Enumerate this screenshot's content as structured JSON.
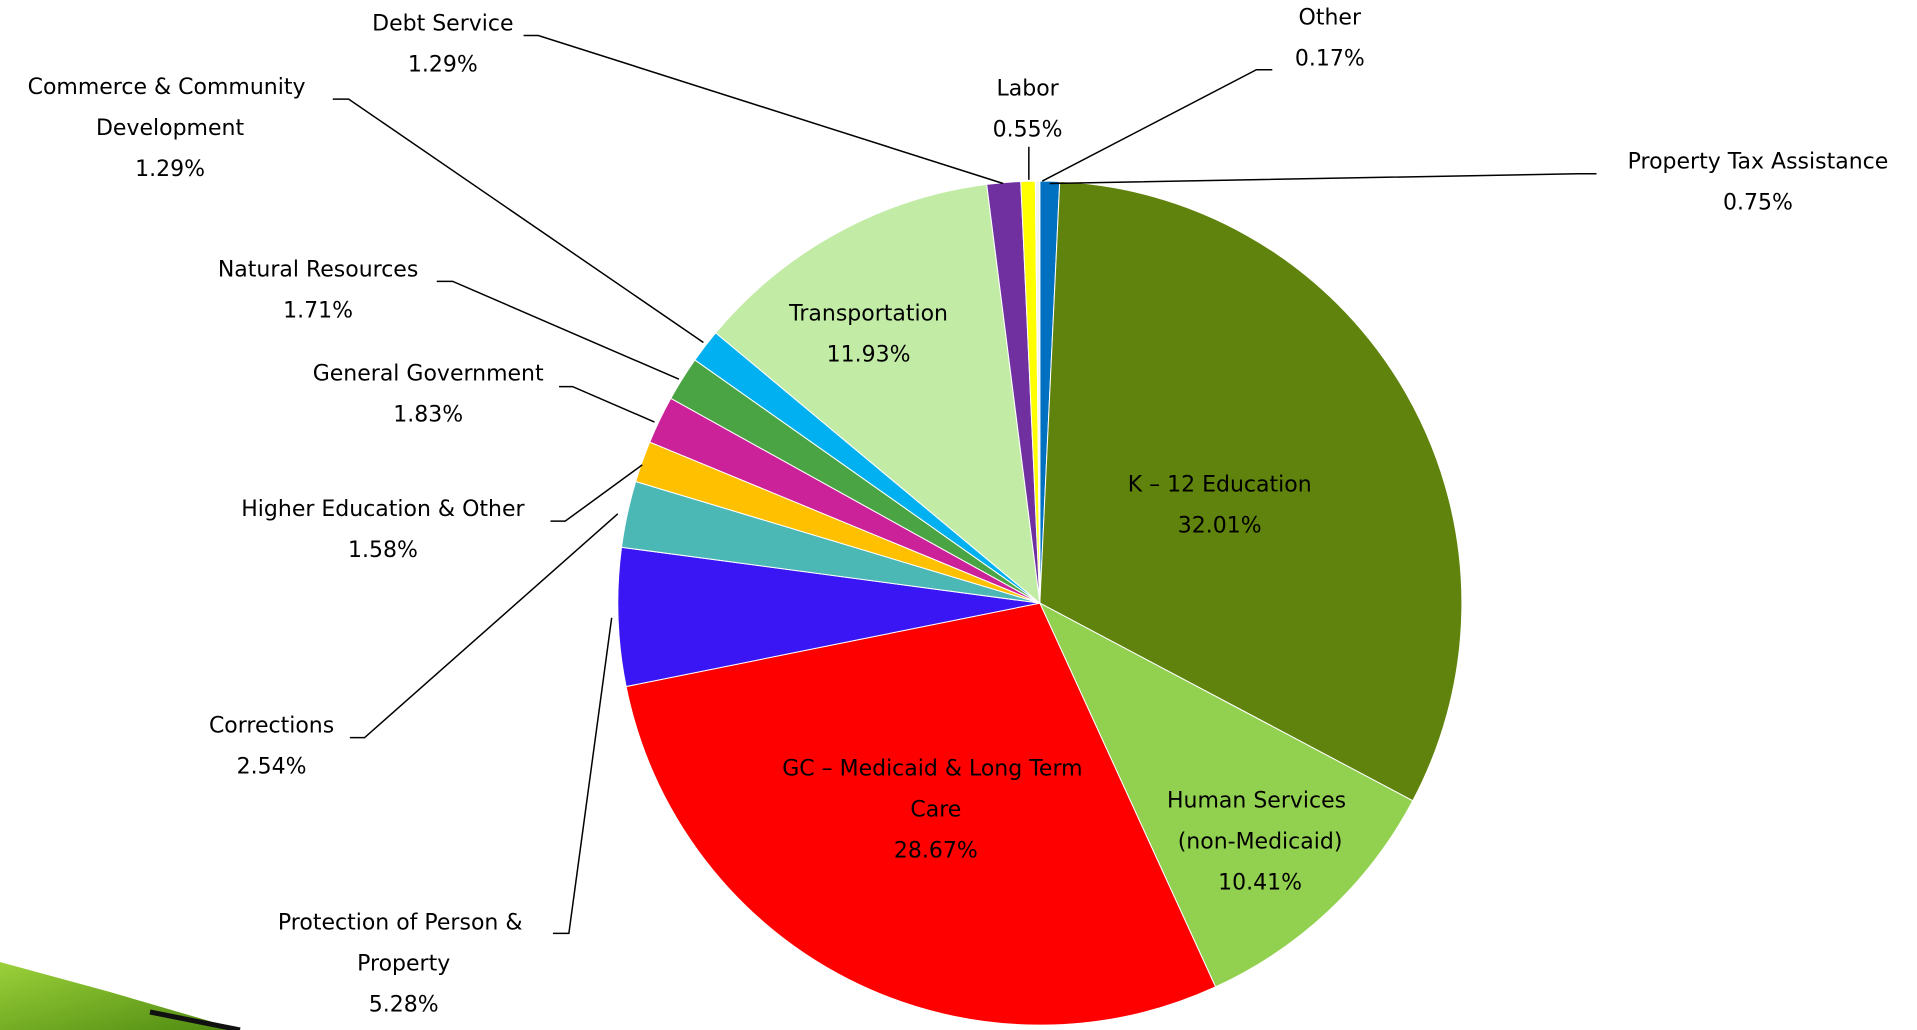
{
  "chart_data": {
    "type": "pie",
    "categories": [
      "Property Tax Assistance",
      "K – 12 Education",
      "Human Services (non-Medicaid)",
      "GC – Medicaid & Long Term Care",
      "Protection of Person & Property",
      "Corrections",
      "Higher Education & Other",
      "General Government",
      "Natural Resources",
      "Commerce & Community Development",
      "Transportation",
      "Debt Service",
      "Labor",
      "Other"
    ],
    "values": [
      0.75,
      32.01,
      10.41,
      28.67,
      5.28,
      2.54,
      1.58,
      1.83,
      1.71,
      1.29,
      11.93,
      1.29,
      0.55,
      0.17
    ],
    "value_labels": [
      "0.75%",
      "32.01%",
      "10.41%",
      "28.67%",
      "5.28%",
      "2.54%",
      "1.58%",
      "1.83%",
      "1.71%",
      "1.29%",
      "11.93%",
      "1.29%",
      "0.55%",
      "0.17%"
    ],
    "colors": [
      "#0070c0",
      "#5f830d",
      "#92d050",
      "#ff0000",
      "#3a16f5",
      "#4bb8b6",
      "#ffc000",
      "#cc2299",
      "#4aa444",
      "#00b0f0",
      "#c2eca6",
      "#7030a0",
      "#ffff00",
      "#f2f2f2"
    ]
  }
}
